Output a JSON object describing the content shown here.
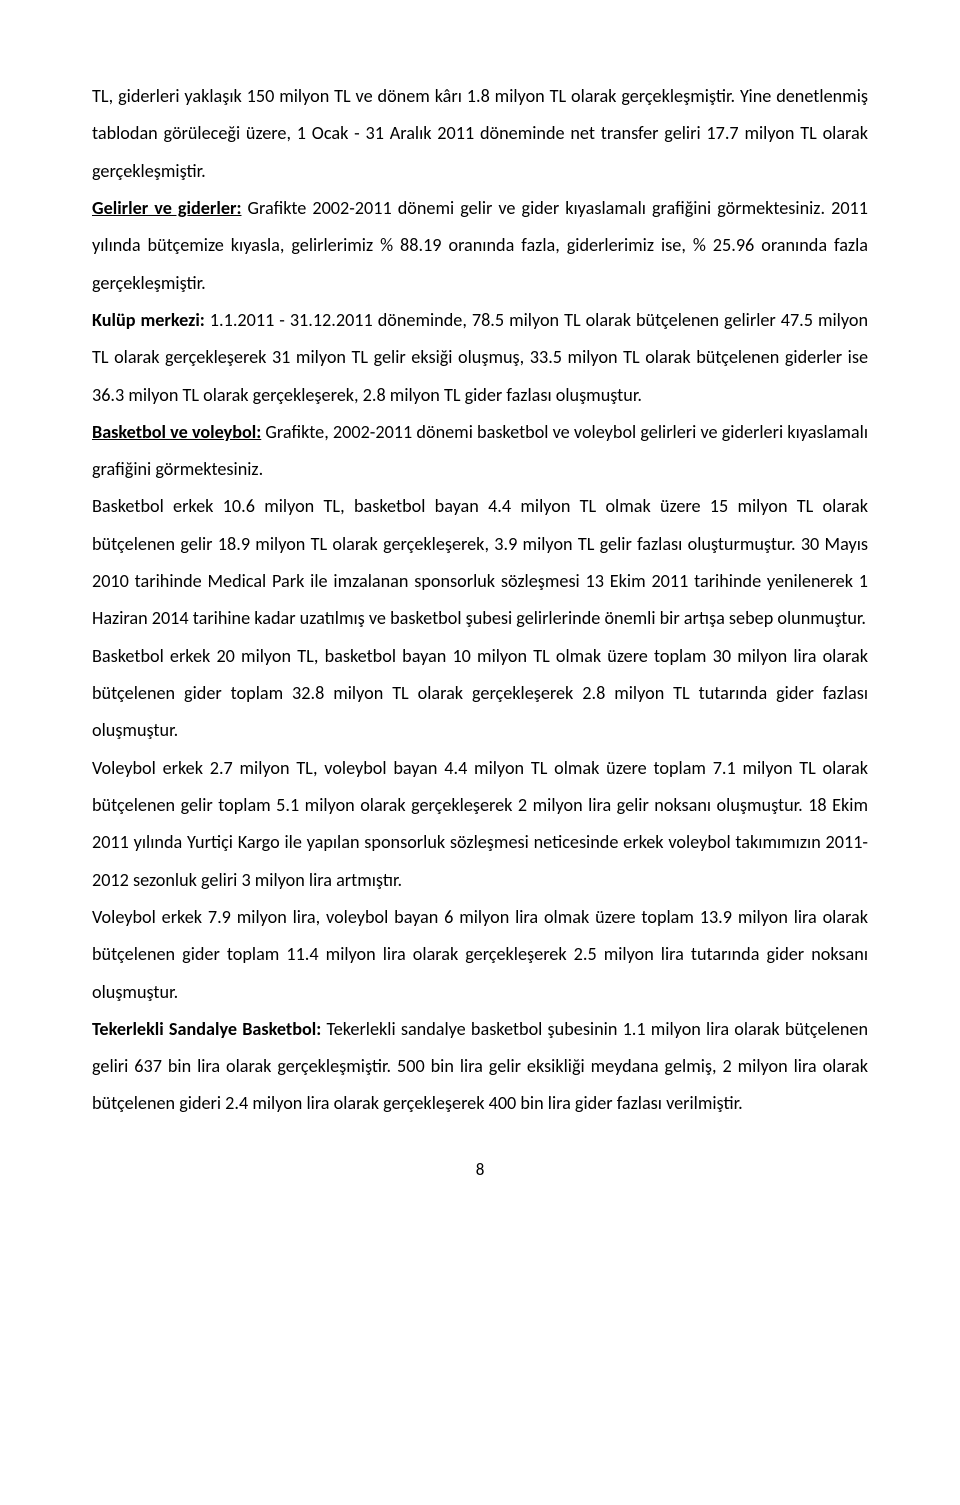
{
  "p1": "TL, giderleri yaklaşık 150 milyon TL ve dönem kârı 1.8 milyon TL olarak gerçekleşmiştir. Yine denetlenmiş tablodan görüleceği üzere, 1 Ocak - 31 Aralık 2011 döneminde net transfer geliri 17.7 milyon TL olarak gerçekleşmiştir.",
  "p2a": "Gelirler ve giderler:",
  "p2b": " Grafikte 2002-2011 dönemi gelir ve gider kıyaslamalı grafiğini görmektesiniz. 2011 yılında bütçemize kıyasla, gelirlerimiz % 88.19 oranında fazla, giderlerimiz ise, % 25.96 oranında fazla gerçekleşmiştir.",
  "p3a": "Kulüp merkezi:",
  "p3b": " 1.1.2011 - 31.12.2011 döneminde, 78.5 milyon TL olarak bütçelenen gelirler 47.5 milyon TL olarak gerçekleşerek 31 milyon TL gelir eksiği oluşmuş, 33.5 milyon TL olarak bütçelenen giderler ise 36.3 milyon TL olarak gerçekleşerek, 2.8 milyon TL gider fazlası oluşmuştur.",
  "p4a": "Basketbol ve voleybol:",
  "p4b": " Grafikte, 2002-2011 dönemi basketbol ve voleybol gelirleri ve giderleri kıyaslamalı grafiğini görmektesiniz.",
  "p5": "Basketbol erkek 10.6 milyon TL, basketbol bayan 4.4 milyon TL olmak üzere 15 milyon TL olarak bütçelenen gelir 18.9 milyon TL olarak gerçekleşerek, 3.9 milyon TL gelir fazlası oluşturmuştur. 30 Mayıs 2010 tarihinde Medical Park ile imzalanan sponsorluk sözleşmesi 13 Ekim 2011 tarihinde yenilenerek 1 Haziran 2014 tarihine kadar uzatılmış ve basketbol şubesi gelirlerinde önemli bir artışa sebep olunmuştur.",
  "p6": "Basketbol erkek 20 milyon TL, basketbol bayan 10 milyon TL olmak üzere toplam 30 milyon lira olarak bütçelenen gider toplam 32.8 milyon TL olarak gerçekleşerek 2.8 milyon TL tutarında gider fazlası oluşmuştur.",
  "p7": "Voleybol erkek 2.7 milyon TL, voleybol bayan 4.4 milyon TL olmak üzere toplam 7.1 milyon TL olarak bütçelenen gelir toplam 5.1 milyon olarak gerçekleşerek 2 milyon lira gelir noksanı oluşmuştur. 18 Ekim 2011 yılında Yurtiçi Kargo ile yapılan sponsorluk sözleşmesi neticesinde erkek voleybol takımımızın 2011-2012 sezonluk geliri 3 milyon lira artmıştır.",
  "p8": "Voleybol erkek 7.9 milyon lira, voleybol bayan 6 milyon lira olmak üzere toplam 13.9 milyon lira olarak bütçelenen gider toplam 11.4 milyon lira olarak gerçekleşerek 2.5 milyon lira tutarında gider noksanı oluşmuştur.",
  "p9a": "Tekerlekli Sandalye Basketbol:",
  "p9b": " Tekerlekli sandalye basketbol şubesinin 1.1 milyon lira olarak bütçelenen geliri 637 bin lira olarak gerçekleşmiştir. 500 bin lira gelir eksikliği meydana gelmiş, 2 milyon lira olarak bütçelenen gideri 2.4 milyon lira olarak gerçekleşerek 400 bin lira gider fazlası verilmiştir.",
  "pageNumber": "8"
}
